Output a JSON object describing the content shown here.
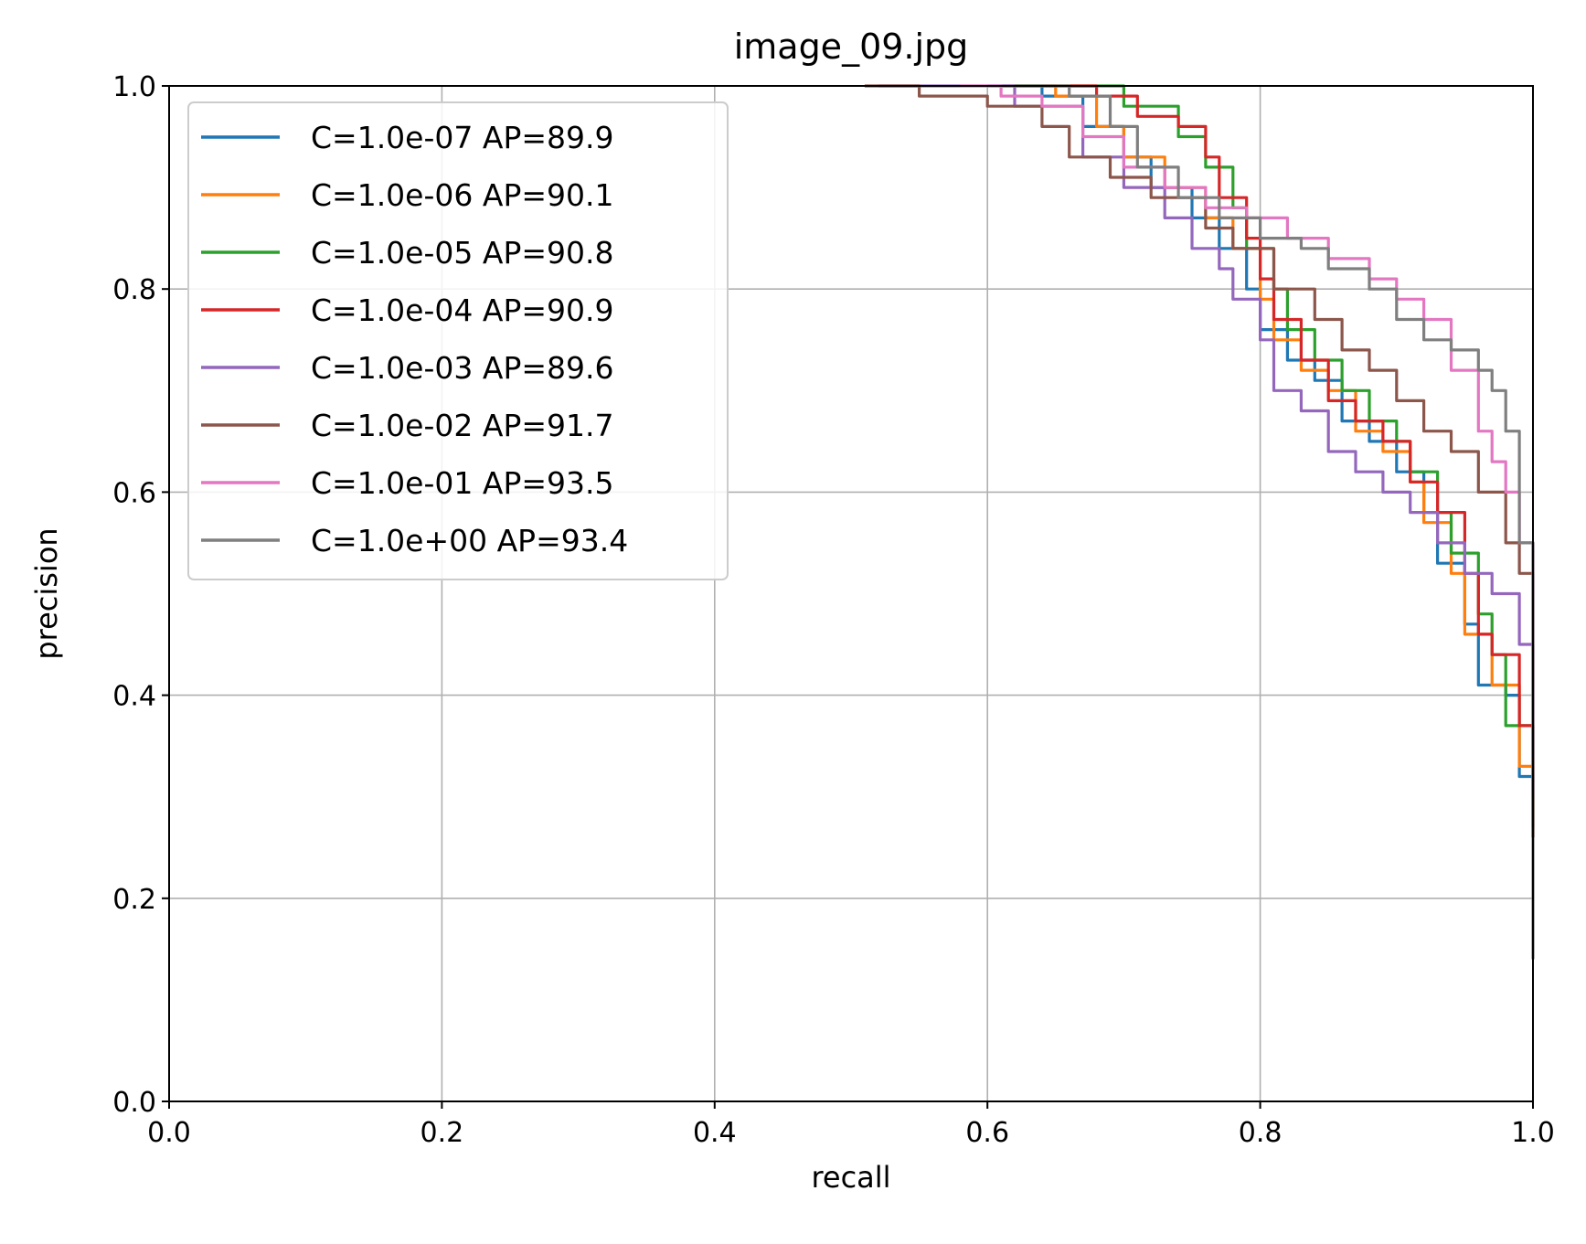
{
  "chart_data": {
    "type": "line",
    "title": "image_09.jpg",
    "xlabel": "recall",
    "ylabel": "precision",
    "xlim": [
      0.0,
      1.0
    ],
    "ylim": [
      0.0,
      1.0
    ],
    "xticks": [
      "0.0",
      "0.2",
      "0.4",
      "0.6",
      "0.8",
      "1.0"
    ],
    "yticks": [
      "0.0",
      "0.2",
      "0.4",
      "0.6",
      "0.8",
      "1.0"
    ],
    "grid": true,
    "legend_position": "top-left",
    "series": [
      {
        "name": "C=1.0e-07 AP=89.9",
        "color": "#1f77b4",
        "points": [
          [
            0.6,
            1.0
          ],
          [
            0.64,
            0.99
          ],
          [
            0.67,
            0.96
          ],
          [
            0.7,
            0.93
          ],
          [
            0.72,
            0.9
          ],
          [
            0.75,
            0.87
          ],
          [
            0.77,
            0.84
          ],
          [
            0.79,
            0.8
          ],
          [
            0.8,
            0.76
          ],
          [
            0.82,
            0.73
          ],
          [
            0.84,
            0.71
          ],
          [
            0.86,
            0.67
          ],
          [
            0.88,
            0.65
          ],
          [
            0.9,
            0.62
          ],
          [
            0.92,
            0.58
          ],
          [
            0.93,
            0.53
          ],
          [
            0.95,
            0.47
          ],
          [
            0.96,
            0.41
          ],
          [
            0.98,
            0.4
          ],
          [
            0.99,
            0.32
          ],
          [
            1.0,
            0.26
          ]
        ]
      },
      {
        "name": "C=1.0e-06 AP=90.1",
        "color": "#ff7f0e",
        "points": [
          [
            0.61,
            1.0
          ],
          [
            0.65,
            0.99
          ],
          [
            0.68,
            0.96
          ],
          [
            0.7,
            0.93
          ],
          [
            0.73,
            0.9
          ],
          [
            0.76,
            0.87
          ],
          [
            0.78,
            0.84
          ],
          [
            0.8,
            0.79
          ],
          [
            0.81,
            0.75
          ],
          [
            0.83,
            0.72
          ],
          [
            0.85,
            0.7
          ],
          [
            0.87,
            0.66
          ],
          [
            0.89,
            0.64
          ],
          [
            0.91,
            0.61
          ],
          [
            0.92,
            0.57
          ],
          [
            0.94,
            0.52
          ],
          [
            0.95,
            0.46
          ],
          [
            0.97,
            0.41
          ],
          [
            0.99,
            0.33
          ],
          [
            1.0,
            0.26
          ]
        ]
      },
      {
        "name": "C=1.0e-05 AP=90.8",
        "color": "#2ca02c",
        "points": [
          [
            0.62,
            1.0
          ],
          [
            0.66,
            1.0
          ],
          [
            0.7,
            0.98
          ],
          [
            0.74,
            0.95
          ],
          [
            0.76,
            0.92
          ],
          [
            0.78,
            0.88
          ],
          [
            0.79,
            0.84
          ],
          [
            0.81,
            0.8
          ],
          [
            0.82,
            0.76
          ],
          [
            0.84,
            0.73
          ],
          [
            0.86,
            0.7
          ],
          [
            0.88,
            0.67
          ],
          [
            0.9,
            0.65
          ],
          [
            0.91,
            0.62
          ],
          [
            0.93,
            0.58
          ],
          [
            0.94,
            0.54
          ],
          [
            0.96,
            0.48
          ],
          [
            0.97,
            0.44
          ],
          [
            0.98,
            0.37
          ],
          [
            1.0,
            0.27
          ]
        ]
      },
      {
        "name": "C=1.0e-04 AP=90.9",
        "color": "#d62728",
        "points": [
          [
            0.64,
            1.0
          ],
          [
            0.68,
            0.99
          ],
          [
            0.71,
            0.97
          ],
          [
            0.74,
            0.96
          ],
          [
            0.76,
            0.93
          ],
          [
            0.77,
            0.89
          ],
          [
            0.79,
            0.85
          ],
          [
            0.8,
            0.81
          ],
          [
            0.81,
            0.77
          ],
          [
            0.83,
            0.73
          ],
          [
            0.85,
            0.69
          ],
          [
            0.87,
            0.67
          ],
          [
            0.89,
            0.65
          ],
          [
            0.91,
            0.61
          ],
          [
            0.93,
            0.58
          ],
          [
            0.95,
            0.52
          ],
          [
            0.96,
            0.46
          ],
          [
            0.97,
            0.44
          ],
          [
            0.99,
            0.37
          ],
          [
            1.0,
            0.26
          ]
        ]
      },
      {
        "name": "C=1.0e-03 AP=89.6",
        "color": "#9467bd",
        "points": [
          [
            0.52,
            1.0
          ],
          [
            0.56,
            1.0
          ],
          [
            0.62,
            0.98
          ],
          [
            0.67,
            0.93
          ],
          [
            0.7,
            0.9
          ],
          [
            0.73,
            0.87
          ],
          [
            0.75,
            0.84
          ],
          [
            0.77,
            0.82
          ],
          [
            0.78,
            0.79
          ],
          [
            0.8,
            0.75
          ],
          [
            0.81,
            0.7
          ],
          [
            0.83,
            0.68
          ],
          [
            0.85,
            0.64
          ],
          [
            0.87,
            0.62
          ],
          [
            0.89,
            0.6
          ],
          [
            0.91,
            0.58
          ],
          [
            0.93,
            0.55
          ],
          [
            0.95,
            0.52
          ],
          [
            0.97,
            0.5
          ],
          [
            0.99,
            0.45
          ],
          [
            1.0,
            0.3
          ]
        ]
      },
      {
        "name": "C=1.0e-02 AP=91.7",
        "color": "#8c564b",
        "points": [
          [
            0.51,
            1.0
          ],
          [
            0.55,
            0.99
          ],
          [
            0.6,
            0.98
          ],
          [
            0.64,
            0.96
          ],
          [
            0.66,
            0.93
          ],
          [
            0.69,
            0.91
          ],
          [
            0.72,
            0.89
          ],
          [
            0.76,
            0.86
          ],
          [
            0.78,
            0.84
          ],
          [
            0.81,
            0.8
          ],
          [
            0.84,
            0.77
          ],
          [
            0.86,
            0.74
          ],
          [
            0.88,
            0.72
          ],
          [
            0.9,
            0.69
          ],
          [
            0.92,
            0.66
          ],
          [
            0.94,
            0.64
          ],
          [
            0.96,
            0.6
          ],
          [
            0.98,
            0.55
          ],
          [
            0.99,
            0.52
          ],
          [
            1.0,
            0.26
          ]
        ]
      },
      {
        "name": "C=1.0e-01 AP=93.5",
        "color": "#e377c2",
        "points": [
          [
            0.58,
            1.0
          ],
          [
            0.61,
            0.99
          ],
          [
            0.64,
            0.98
          ],
          [
            0.67,
            0.95
          ],
          [
            0.7,
            0.92
          ],
          [
            0.73,
            0.9
          ],
          [
            0.76,
            0.88
          ],
          [
            0.79,
            0.87
          ],
          [
            0.82,
            0.85
          ],
          [
            0.85,
            0.83
          ],
          [
            0.88,
            0.81
          ],
          [
            0.9,
            0.79
          ],
          [
            0.92,
            0.77
          ],
          [
            0.94,
            0.72
          ],
          [
            0.96,
            0.66
          ],
          [
            0.97,
            0.63
          ],
          [
            0.98,
            0.6
          ],
          [
            0.99,
            0.55
          ],
          [
            1.0,
            0.3
          ]
        ]
      },
      {
        "name": "C=1.0e+00 AP=93.4",
        "color": "#7f7f7f",
        "points": [
          [
            0.62,
            1.0
          ],
          [
            0.66,
            0.99
          ],
          [
            0.69,
            0.96
          ],
          [
            0.71,
            0.92
          ],
          [
            0.74,
            0.89
          ],
          [
            0.77,
            0.87
          ],
          [
            0.8,
            0.85
          ],
          [
            0.83,
            0.84
          ],
          [
            0.85,
            0.82
          ],
          [
            0.88,
            0.8
          ],
          [
            0.9,
            0.77
          ],
          [
            0.92,
            0.75
          ],
          [
            0.94,
            0.74
          ],
          [
            0.96,
            0.72
          ],
          [
            0.97,
            0.7
          ],
          [
            0.98,
            0.66
          ],
          [
            0.99,
            0.55
          ],
          [
            1.0,
            0.14
          ]
        ]
      }
    ]
  }
}
